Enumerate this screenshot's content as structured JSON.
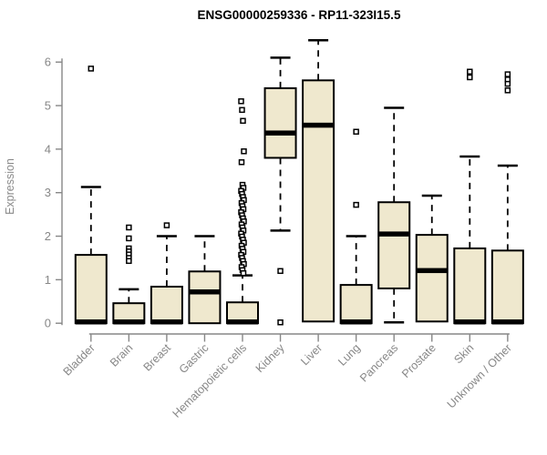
{
  "chart_data": {
    "type": "boxplot",
    "title": "ENSG00000259336 - RP11-323I15.5",
    "ylabel": "Expression",
    "xlabel": "",
    "ylim": [
      0,
      6.6
    ],
    "yticks": [
      0,
      1,
      2,
      3,
      4,
      5,
      6
    ],
    "grid": "off",
    "legend": "none",
    "categories": [
      "Bladder",
      "Brain",
      "Breast",
      "Gastric",
      "Hematopoietic cells",
      "Kidney",
      "Liver",
      "Lung",
      "Pancreas",
      "Prostate",
      "Skin",
      "Unknown / Other"
    ],
    "boxes": [
      {
        "category": "Bladder",
        "q1": 0,
        "median": 0.03,
        "q3": 1.57,
        "whisker_low": 0,
        "whisker_high": 3.13,
        "outliers": [
          5.85
        ]
      },
      {
        "category": "Brain",
        "q1": 0,
        "median": 0.03,
        "q3": 0.46,
        "whisker_low": 0,
        "whisker_high": 0.78,
        "outliers": [
          2.2,
          1.95,
          1.72,
          1.65,
          1.58,
          1.5,
          1.43
        ]
      },
      {
        "category": "Breast",
        "q1": 0,
        "median": 0.03,
        "q3": 0.84,
        "whisker_low": 0,
        "whisker_high": 2.0,
        "outliers": [
          2.25
        ]
      },
      {
        "category": "Gastric",
        "q1": 0,
        "median": 0.72,
        "q3": 1.19,
        "whisker_low": 0,
        "whisker_high": 2.0,
        "outliers": []
      },
      {
        "category": "Hematopoietic cells",
        "q1": 0,
        "median": 0.03,
        "q3": 0.48,
        "whisker_low": 0,
        "whisker_high": 1.1,
        "outliers": [
          5.1,
          4.9,
          4.65,
          3.95,
          3.7,
          3.18,
          3.11,
          3.04,
          2.97,
          2.9,
          2.83,
          2.76,
          2.69,
          2.62,
          2.55,
          2.48,
          2.41,
          2.34,
          2.27,
          2.2,
          2.13,
          2.06,
          1.99,
          1.92,
          1.85,
          1.78,
          1.71,
          1.64,
          1.57,
          1.5,
          1.43,
          1.36,
          1.29,
          1.22,
          1.15
        ]
      },
      {
        "category": "Kidney",
        "q1": 3.8,
        "median": 4.37,
        "q3": 5.4,
        "whisker_low": 2.13,
        "whisker_high": 6.1,
        "outliers": [
          1.2,
          0.02
        ]
      },
      {
        "category": "Liver",
        "q1": 0.04,
        "median": 4.55,
        "q3": 5.58,
        "whisker_low": 0.04,
        "whisker_high": 6.5,
        "outliers": []
      },
      {
        "category": "Lung",
        "q1": 0,
        "median": 0.03,
        "q3": 0.88,
        "whisker_low": 0,
        "whisker_high": 2.0,
        "outliers": [
          4.4,
          2.72
        ]
      },
      {
        "category": "Pancreas",
        "q1": 0.8,
        "median": 2.05,
        "q3": 2.78,
        "whisker_low": 0.02,
        "whisker_high": 4.95,
        "outliers": []
      },
      {
        "category": "Prostate",
        "q1": 0.04,
        "median": 1.21,
        "q3": 2.03,
        "whisker_low": 0.04,
        "whisker_high": 2.93,
        "outliers": []
      },
      {
        "category": "Skin",
        "q1": 0,
        "median": 0.03,
        "q3": 1.72,
        "whisker_low": 0,
        "whisker_high": 3.83,
        "outliers": [
          5.78,
          5.65
        ]
      },
      {
        "category": "Unknown / Other",
        "q1": 0,
        "median": 0.03,
        "q3": 1.67,
        "whisker_low": 0,
        "whisker_high": 3.62,
        "outliers": [
          5.72,
          5.6,
          5.5,
          5.35
        ]
      }
    ],
    "style": {
      "box_fill": "#EFE8CE",
      "box_border": "#000000",
      "median_color": "#000000",
      "whisker_color": "#000000",
      "outlier_shape": "open-square",
      "axis_color": "#878787",
      "tick_label_color": "#878787",
      "title_color": "#000000",
      "background": "#FFFFFF"
    }
  }
}
